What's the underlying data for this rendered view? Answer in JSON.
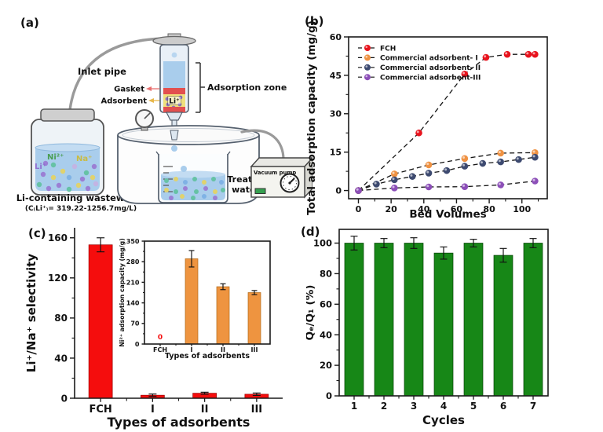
{
  "figure": {
    "panel_labels": {
      "a": "(a)",
      "b": "(b)",
      "c": "(c)",
      "d": "(d)"
    }
  },
  "diagram": {
    "labels": {
      "inlet_pipe": "Inlet pipe",
      "gasket": "Gasket",
      "adsorbent": "Adsorbent",
      "adsorption_zone": "Adsorption zone",
      "column_ion": "Li⁺",
      "ion_ni": "Ni²⁺",
      "ion_na": "Na⁺",
      "ion_li": "Li⁺",
      "wastewater_title": "Li-containing wastewater",
      "wastewater_conc": "(C₍Li⁺₎= 319.22-1256.7mg/L)",
      "treated_line1": "Treated",
      "treated_line2": "water",
      "vacuum_pump": "Vacuum pump"
    }
  },
  "chart_data": [
    {
      "id": "panel_b",
      "type": "line",
      "title": "",
      "xlabel": "Bed Volumes",
      "ylabel": "Total adsorption capacity (mg/g)",
      "xlim": [
        -6,
        115.5
      ],
      "ylim": [
        -3.2,
        60
      ],
      "xticks": [
        0,
        20,
        40,
        60,
        80,
        100
      ],
      "yticks": [
        0,
        15,
        30,
        45,
        60
      ],
      "xminor": [
        10,
        30,
        50,
        70,
        90,
        110
      ],
      "yminor": [
        7.5,
        22.5,
        37.5,
        52.5
      ],
      "grid": false,
      "legend_position": "top-left",
      "line_color": "#141414",
      "series": [
        {
          "name": "FCH",
          "color": "#e8131d",
          "x": [
            0,
            37,
            65,
            78,
            91,
            104,
            108
          ],
          "y": [
            0,
            22.5,
            45.5,
            52,
            53.2,
            53.2,
            53.2
          ]
        },
        {
          "name": "Commercial adsorbent- I",
          "color": "#ef9243",
          "x": [
            0,
            22,
            43,
            65,
            87,
            108
          ],
          "y": [
            0,
            6.5,
            10,
            12.5,
            14.6,
            14.8
          ]
        },
        {
          "name": "Commercial adsorbent- II",
          "color": "#3d4a70",
          "x": [
            0,
            11,
            22,
            33,
            43,
            54,
            65,
            76,
            87,
            98,
            108
          ],
          "y": [
            0,
            2.5,
            4.2,
            5.5,
            6.8,
            7.8,
            9.5,
            10.6,
            11.2,
            12.1,
            13
          ]
        },
        {
          "name": "Commercial adsorbent-III",
          "color": "#8c4fb8",
          "x": [
            0,
            22,
            43,
            65,
            87,
            108
          ],
          "y": [
            0,
            1,
            1.4,
            1.5,
            2.2,
            3.7
          ]
        }
      ]
    },
    {
      "id": "panel_c",
      "type": "bar",
      "title": "",
      "xlabel": "Types of adsorbents",
      "ylabel": "Li⁺/Na⁺ selectivity",
      "categories": [
        "FCH",
        "I",
        "II",
        "III"
      ],
      "values": [
        153,
        3,
        5,
        4
      ],
      "errors": [
        7,
        1.2,
        1,
        1.2
      ],
      "bar_color": "#f50d0d",
      "bar_edge": "#9a0000",
      "ylim": [
        0,
        170
      ],
      "yticks": [
        0,
        40,
        80,
        120,
        160
      ],
      "yminor": [
        20,
        60,
        100,
        140
      ],
      "grid": false
    },
    {
      "id": "panel_c_inset",
      "type": "bar",
      "title": "",
      "xlabel": "Types of adsorbents",
      "ylabel": "Ni²⁺ adsorption capacity (mg/g)",
      "categories": [
        "FCH",
        "I",
        "II",
        "III"
      ],
      "values": [
        0,
        290,
        195,
        175
      ],
      "errors": [
        0,
        28,
        10,
        7
      ],
      "bar_color": "#ee9440",
      "bar_edge": "#b06a1a",
      "ylim": [
        0,
        350
      ],
      "yticks": [
        0,
        70,
        140,
        210,
        280,
        350
      ],
      "yminor": [
        35,
        105,
        175,
        245,
        315
      ],
      "grid": false,
      "zero_label": {
        "text": "0",
        "color": "#f50d0d"
      }
    },
    {
      "id": "panel_d",
      "type": "bar",
      "title": "",
      "xlabel": "Cycles",
      "ylabel": "Qₑ/Q₁ (%)",
      "categories": [
        "1",
        "2",
        "3",
        "4",
        "5",
        "6",
        "7"
      ],
      "values": [
        100,
        100,
        100,
        93.5,
        100,
        92,
        100
      ],
      "errors": [
        4.5,
        3,
        3.5,
        4,
        2.5,
        4.5,
        3
      ],
      "bar_color": "#178717",
      "bar_edge": "#063f06",
      "ylim": [
        0,
        109
      ],
      "yticks": [
        0,
        20,
        40,
        60,
        80,
        100
      ],
      "yminor": [
        10,
        30,
        50,
        70,
        90
      ],
      "grid": false
    }
  ]
}
